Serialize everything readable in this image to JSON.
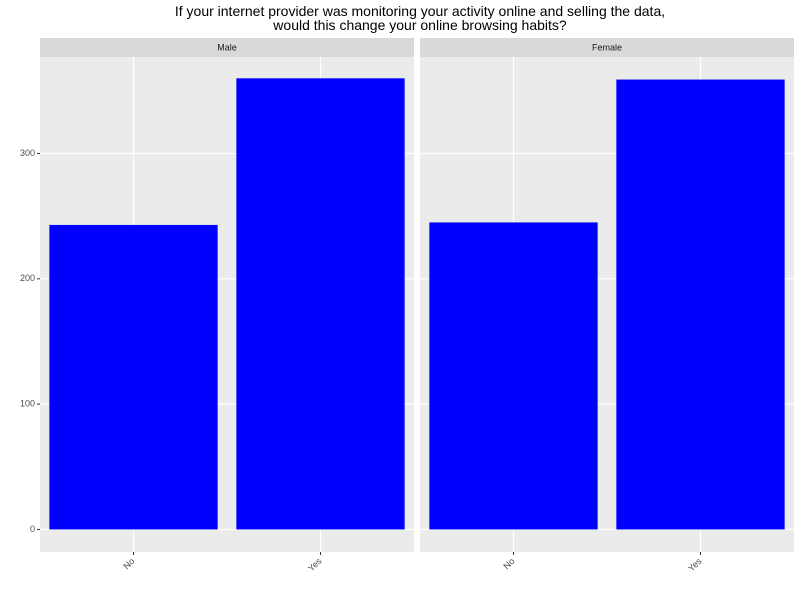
{
  "title": "If your internet provider was monitoring your activity online and selling the data,\nwould this change your online browsing habits?",
  "chart_data": [
    {
      "type": "bar",
      "title": "Male",
      "categories": [
        "No",
        "Yes"
      ],
      "values": [
        243,
        360
      ],
      "color": "#0000ff",
      "ylim": [
        -18,
        377
      ],
      "yticks": [
        0,
        100,
        200,
        300
      ],
      "grid": true
    },
    {
      "type": "bar",
      "title": "Female",
      "categories": [
        "No",
        "Yes"
      ],
      "values": [
        245,
        359
      ],
      "color": "#0000ff",
      "ylim": [
        -18,
        377
      ],
      "yticks": [
        0,
        100,
        200,
        300
      ],
      "grid": true
    }
  ]
}
